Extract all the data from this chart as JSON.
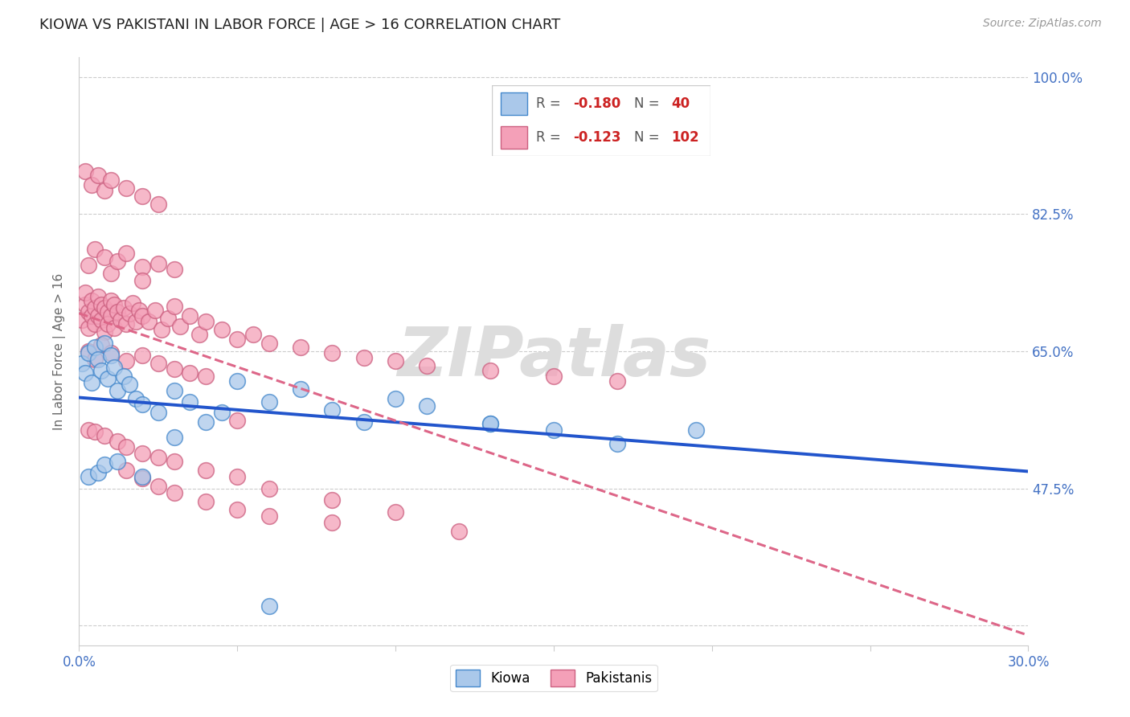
{
  "title": "KIOWA VS PAKISTANI IN LABOR FORCE | AGE > 16 CORRELATION CHART",
  "source": "Source: ZipAtlas.com",
  "ylabel": "In Labor Force | Age > 16",
  "xlim": [
    0.0,
    0.3
  ],
  "ylim": [
    0.275,
    1.025
  ],
  "yticks_right": [
    0.475,
    0.65,
    0.825,
    1.0
  ],
  "yticklabels_right": [
    "47.5%",
    "65.0%",
    "82.5%",
    "100.0%"
  ],
  "grid_color": "#cccccc",
  "background_color": "#ffffff",
  "kiowa_face_color": "#aac8ea",
  "kiowa_edge_color": "#4488cc",
  "pakistani_face_color": "#f4a0b8",
  "pakistani_edge_color": "#cc6080",
  "trend_blue": "#2255cc",
  "trend_pink": "#dd6688",
  "watermark_text": "ZIPatlas",
  "tick_label_color": "#4472c4",
  "ylabel_color": "#666666",
  "kiowa_x": [
    0.001,
    0.002,
    0.003,
    0.004,
    0.005,
    0.006,
    0.007,
    0.008,
    0.009,
    0.01,
    0.011,
    0.012,
    0.014,
    0.016,
    0.018,
    0.02,
    0.025,
    0.03,
    0.035,
    0.04,
    0.045,
    0.05,
    0.06,
    0.07,
    0.08,
    0.09,
    0.1,
    0.11,
    0.13,
    0.15,
    0.17,
    0.195,
    0.003,
    0.006,
    0.008,
    0.012,
    0.02,
    0.03,
    0.13,
    0.06
  ],
  "kiowa_y": [
    0.635,
    0.622,
    0.648,
    0.61,
    0.655,
    0.64,
    0.625,
    0.66,
    0.615,
    0.645,
    0.63,
    0.6,
    0.618,
    0.608,
    0.59,
    0.582,
    0.572,
    0.6,
    0.585,
    0.56,
    0.572,
    0.612,
    0.585,
    0.602,
    0.575,
    0.56,
    0.59,
    0.58,
    0.558,
    0.55,
    0.532,
    0.55,
    0.49,
    0.495,
    0.505,
    0.51,
    0.49,
    0.54,
    0.558,
    0.325
  ],
  "pakistani_x": [
    0.001,
    0.002,
    0.002,
    0.003,
    0.003,
    0.004,
    0.004,
    0.005,
    0.005,
    0.006,
    0.006,
    0.007,
    0.007,
    0.008,
    0.008,
    0.009,
    0.009,
    0.01,
    0.01,
    0.011,
    0.011,
    0.012,
    0.013,
    0.014,
    0.015,
    0.016,
    0.017,
    0.018,
    0.019,
    0.02,
    0.022,
    0.024,
    0.026,
    0.028,
    0.03,
    0.032,
    0.035,
    0.038,
    0.04,
    0.045,
    0.05,
    0.055,
    0.06,
    0.07,
    0.08,
    0.09,
    0.1,
    0.11,
    0.13,
    0.15,
    0.17,
    0.003,
    0.005,
    0.008,
    0.01,
    0.012,
    0.015,
    0.02,
    0.025,
    0.03,
    0.003,
    0.005,
    0.007,
    0.01,
    0.015,
    0.02,
    0.025,
    0.03,
    0.035,
    0.04,
    0.003,
    0.005,
    0.008,
    0.012,
    0.015,
    0.02,
    0.025,
    0.03,
    0.04,
    0.05,
    0.06,
    0.08,
    0.1,
    0.002,
    0.004,
    0.006,
    0.008,
    0.01,
    0.015,
    0.02,
    0.025,
    0.015,
    0.02,
    0.025,
    0.03,
    0.04,
    0.05,
    0.06,
    0.08,
    0.12,
    0.02,
    0.05
  ],
  "pakistani_y": [
    0.69,
    0.71,
    0.725,
    0.7,
    0.68,
    0.695,
    0.715,
    0.705,
    0.685,
    0.72,
    0.695,
    0.71,
    0.69,
    0.705,
    0.675,
    0.7,
    0.685,
    0.715,
    0.695,
    0.68,
    0.71,
    0.7,
    0.69,
    0.705,
    0.685,
    0.698,
    0.712,
    0.688,
    0.702,
    0.695,
    0.688,
    0.702,
    0.678,
    0.692,
    0.708,
    0.682,
    0.695,
    0.672,
    0.688,
    0.678,
    0.665,
    0.672,
    0.66,
    0.655,
    0.648,
    0.642,
    0.638,
    0.632,
    0.625,
    0.618,
    0.612,
    0.76,
    0.78,
    0.77,
    0.75,
    0.765,
    0.775,
    0.758,
    0.762,
    0.755,
    0.65,
    0.64,
    0.658,
    0.648,
    0.638,
    0.645,
    0.635,
    0.628,
    0.622,
    0.618,
    0.55,
    0.548,
    0.542,
    0.535,
    0.528,
    0.52,
    0.515,
    0.51,
    0.498,
    0.49,
    0.475,
    0.46,
    0.445,
    0.88,
    0.862,
    0.875,
    0.855,
    0.868,
    0.858,
    0.848,
    0.838,
    0.498,
    0.488,
    0.478,
    0.47,
    0.458,
    0.448,
    0.44,
    0.432,
    0.42,
    0.74,
    0.562
  ]
}
